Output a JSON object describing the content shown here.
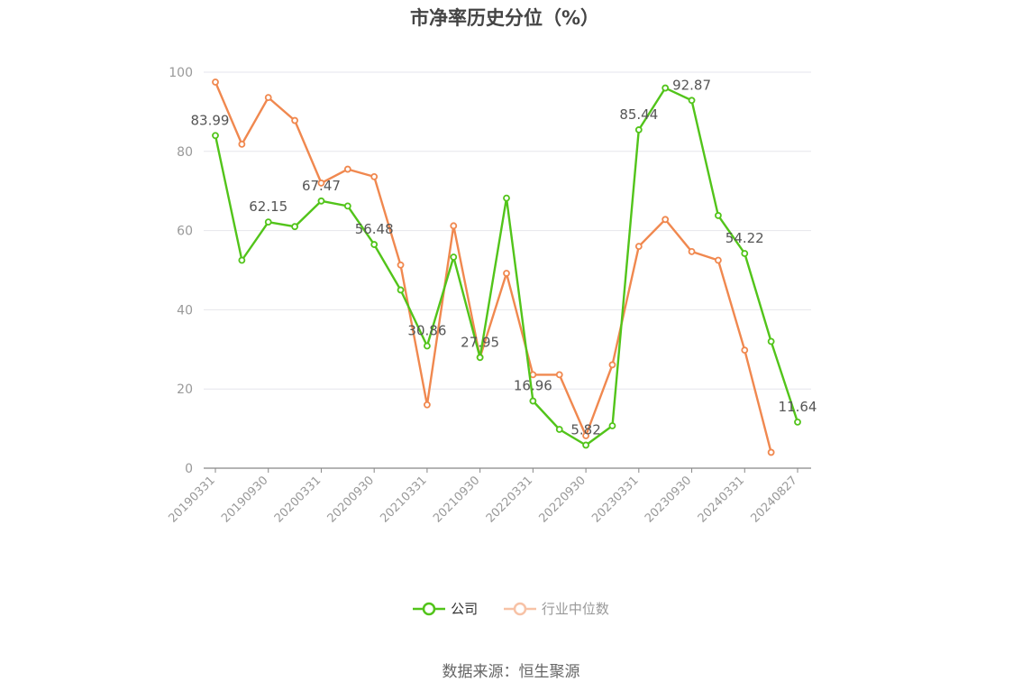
{
  "title": "市净率历史分位（%）",
  "source": "数据来源：恒生聚源",
  "legend": [
    {
      "name": "公司",
      "color": "#52c41a",
      "active": true
    },
    {
      "name": "行业中位数",
      "color": "#f0884f",
      "active": false
    }
  ],
  "chart_data": {
    "type": "line",
    "ylim": [
      0,
      100
    ],
    "yticks": [
      0,
      20,
      40,
      60,
      80,
      100
    ],
    "grid": true,
    "legend_position": "bottom",
    "x": [
      "20190331",
      "20190630",
      "20190930",
      "20191231",
      "20200331",
      "20200630",
      "20200930",
      "20201231",
      "20210331",
      "20210630",
      "20210930",
      "20211231",
      "20220331",
      "20220630",
      "20220930",
      "20221231",
      "20230331",
      "20230630",
      "20230930",
      "20231231",
      "20240331",
      "20240630",
      "20240827"
    ],
    "xtick_labels": [
      "20190331",
      "20190930",
      "20200331",
      "20200930",
      "20210331",
      "20210930",
      "20220331",
      "20220930",
      "20230331",
      "20230930",
      "20240331",
      "20240827"
    ],
    "series": [
      {
        "name": "公司",
        "color": "#52c41a",
        "values": [
          83.99,
          52.5,
          62.15,
          61.0,
          67.47,
          66.2,
          56.48,
          45.0,
          30.86,
          53.3,
          27.95,
          68.2,
          16.96,
          9.8,
          5.82,
          10.7,
          85.44,
          96.0,
          92.87,
          63.8,
          54.22,
          32.0,
          11.64
        ],
        "labels": {
          "0": "83.99",
          "2": "62.15",
          "4": "67.47",
          "6": "56.48",
          "8": "30.86",
          "10": "27.95",
          "12": "16.96",
          "14": "5.82",
          "16": "85.44",
          "18": "92.87",
          "20": "54.22",
          "22": "11.64"
        }
      },
      {
        "name": "行业中位数",
        "color": "#f0884f",
        "values": [
          97.5,
          81.8,
          93.6,
          87.8,
          72.0,
          75.5,
          73.6,
          51.3,
          16.0,
          61.2,
          28.0,
          49.2,
          23.6,
          23.6,
          8.2,
          26.1,
          56.0,
          62.8,
          54.7,
          52.5,
          29.8,
          4.0,
          null
        ]
      }
    ]
  }
}
